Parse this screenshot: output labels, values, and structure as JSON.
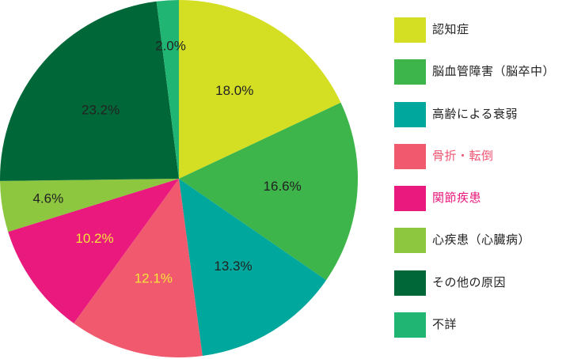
{
  "chart_data": {
    "type": "pie",
    "start_angle_deg": 0,
    "direction": "clockwise",
    "slices": [
      {
        "label": "認知症",
        "value": 18.0,
        "value_label": "18.0%",
        "color": "#d4df24",
        "legend_text_color": "#222222",
        "value_text_color": "#222222"
      },
      {
        "label": "脳血管障害（脳卒中）",
        "value": 16.6,
        "value_label": "16.6%",
        "color": "#3db54a",
        "legend_text_color": "#222222",
        "value_text_color": "#222222"
      },
      {
        "label": "高齢による衰弱",
        "value": 13.3,
        "value_label": "13.3%",
        "color": "#00a79d",
        "legend_text_color": "#222222",
        "value_text_color": "#222222"
      },
      {
        "label": "骨折・転倒",
        "value": 12.1,
        "value_label": "12.1%",
        "color": "#f15a6e",
        "legend_text_color": "#ee5572",
        "value_text_color": "#f7e43a"
      },
      {
        "label": "関節疾患",
        "value": 10.2,
        "value_label": "10.2%",
        "color": "#e9197d",
        "legend_text_color": "#e9197d",
        "value_text_color": "#f7e43a"
      },
      {
        "label": "心疾患（心臓病）",
        "value": 4.6,
        "value_label": "4.6%",
        "color": "#8dc63f",
        "legend_text_color": "#222222",
        "value_text_color": "#222222"
      },
      {
        "label": "その他の原因",
        "value": 23.2,
        "value_label": "23.2%",
        "color": "#006838",
        "legend_text_color": "#222222",
        "value_text_color": "#222222"
      },
      {
        "label": "不詳",
        "value": 2.0,
        "value_label": "2.0%",
        "color": "#21b573",
        "legend_text_color": "#222222",
        "value_text_color": "#222222"
      }
    ],
    "legend_position": "right"
  }
}
